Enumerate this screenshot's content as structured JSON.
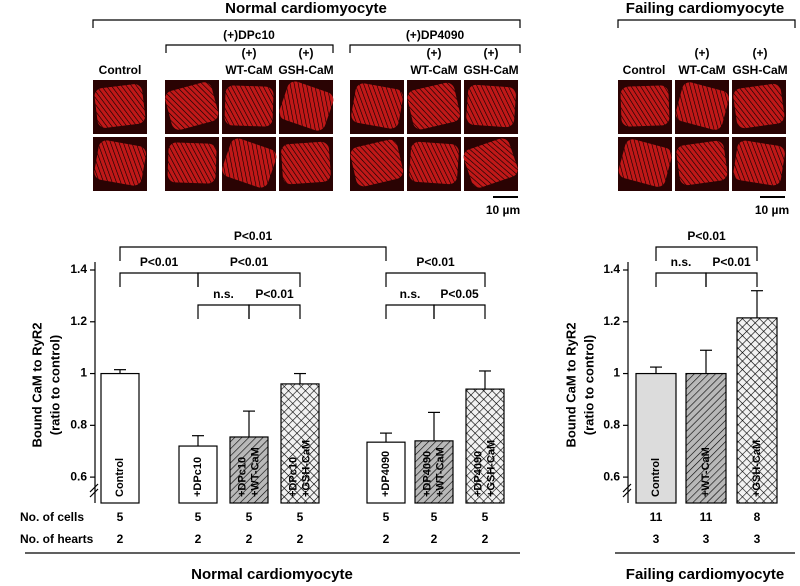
{
  "micrographs": {
    "normal": {
      "title": "Normal cardiomyocyte",
      "control": "Control",
      "group1": "(+)DPc10",
      "group2": "(+)DP4090",
      "plus": "(+)",
      "wt": "WT-CaM",
      "gsh": "GSH-CaM",
      "scale": "10 µm"
    },
    "failing": {
      "title": "Failing cardiomyocyte",
      "control": "Control",
      "plus": "(+)",
      "wt": "WT-CaM",
      "gsh": "GSH-CaM",
      "scale": "10 µm"
    }
  },
  "chart_data": [
    {
      "type": "bar",
      "ylabel": [
        "Bound CaM to RyR2",
        "(ratio to control)"
      ],
      "xlabel": "Normal cardiomyocyte",
      "categories": [
        [
          "Control"
        ],
        [
          "+DPc10"
        ],
        [
          "+DPc10",
          "+WT-CaM"
        ],
        [
          "+DPc10",
          "+GSH-CaM"
        ],
        [
          "+DP4090"
        ],
        [
          "+DP4090",
          "+WT-CaM"
        ],
        [
          "+DP4090",
          "+GSH-CaM"
        ]
      ],
      "values": [
        1.0,
        0.72,
        0.755,
        0.96,
        0.735,
        0.74,
        0.94
      ],
      "errors": [
        0.015,
        0.04,
        0.1,
        0.04,
        0.035,
        0.11,
        0.07
      ],
      "fills": [
        "#ffffff",
        "#ffffff",
        "hatch",
        "crosshatch",
        "#ffffff",
        "hatch",
        "crosshatch"
      ],
      "ylim": [
        0.5,
        1.4
      ],
      "yticks": [
        0.6,
        0.8,
        1,
        1.2,
        1.4
      ],
      "annotations": [
        "P<0.01",
        "P<0.01",
        "P<0.01",
        "P<0.01",
        "n.s.",
        "P<0.01",
        "n.s.",
        "P<0.05"
      ],
      "table": [
        {
          "label": "No. of cells",
          "values": [
            5,
            5,
            5,
            5,
            5,
            5,
            5
          ]
        },
        {
          "label": "No. of hearts",
          "values": [
            2,
            2,
            2,
            2,
            2,
            2,
            2
          ]
        }
      ]
    },
    {
      "type": "bar",
      "ylabel": [
        "Bound CaM to RyR2",
        "(ratio to control)"
      ],
      "xlabel": "Failing cardiomyocyte",
      "categories": [
        [
          "Control"
        ],
        [
          "+WT-CaM"
        ],
        [
          "+GSH-CaM"
        ]
      ],
      "values": [
        1.0,
        1.0,
        1.215
      ],
      "errors": [
        0.025,
        0.09,
        0.105
      ],
      "fills": [
        "#dcdcdc",
        "hatch",
        "crosshatch"
      ],
      "ylim": [
        0.5,
        1.4
      ],
      "yticks": [
        0.6,
        0.8,
        1,
        1.2,
        1.4
      ],
      "annotations": [
        "P<0.01",
        "n.s.",
        "P<0.01"
      ],
      "table": [
        {
          "values": [
            11,
            11,
            8
          ]
        },
        {
          "values": [
            3,
            3,
            3
          ]
        }
      ]
    }
  ]
}
